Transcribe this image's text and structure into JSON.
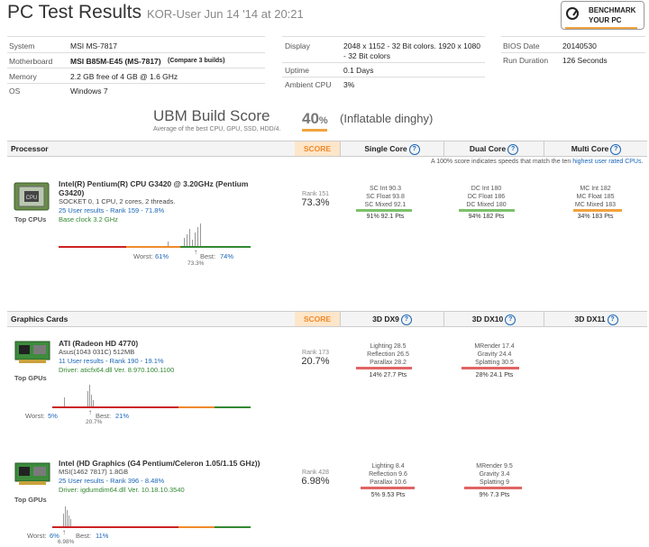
{
  "header": {
    "title": "PC Test Results",
    "subtitle": "KOR-User Jun 14 '14 at 20:21",
    "bench_button_line1": "BENCHMARK",
    "bench_button_line2": "YOUR PC"
  },
  "system": {
    "system_label": "System",
    "system_value": "MSI MS-7817",
    "motherboard_label": "Motherboard",
    "motherboard_value": "MSI B85M-E45 (MS-7817)",
    "compare_link": "(Compare 3 builds)",
    "memory_label": "Memory",
    "memory_value": "2.2 GB free of 4 GB @ 1.6 GHz",
    "os_label": "OS",
    "os_value": "Windows 7",
    "display_label": "Display",
    "display_value_1": "2048 x 1152 - 32 Bit colors. 1920 x 1080",
    "display_value_2": "- 32 Bit colors",
    "uptime_label": "Uptime",
    "uptime_value": "0.1 Days",
    "ambient_label": "Ambient CPU",
    "ambient_value": "3%",
    "bios_label": "BIOS Date",
    "bios_value": "20140530",
    "run_label": "Run Duration",
    "run_value": "126 Seconds"
  },
  "ubm": {
    "title": "UBM Build Score",
    "subtitle": "Average of the best CPU, GPU, SSD, HDD/4.",
    "percent": "40",
    "percent_sign": "%",
    "name": "(Inflatable dinghy)"
  },
  "processor": {
    "section": "Processor",
    "score_label": "SCORE",
    "col1": "Single Core",
    "col2": "Dual Core",
    "col3": "Multi Core",
    "note_prefix": "A 100% score indicates speeds that match the ten ",
    "note_link": "highest user rated CPUs",
    "note_suffix": ".",
    "name_1": "Intel(R) Pentium(R) CPU G3420 @ 3.20GHz (Pentium",
    "name_2": "G3420)",
    "details": "SOCKET 0, 1 CPU, 2 cores, 2 threads.",
    "user_results": "25 User results - Rank 159 - 71.8%",
    "base_clock": "Base clock 3.2 GHz",
    "top_label": "Top CPUs",
    "rank": "Rank 151",
    "score": "73.3%",
    "sc": [
      "SC Int 90.3",
      "SC Float 93.8",
      "SC Mixed 92.1"
    ],
    "sc_pts": "91% 92.1 Pts",
    "dc": [
      "DC Int 180",
      "DC Float 186",
      "DC Mixed 180"
    ],
    "dc_pts": "94% 182 Pts",
    "mc": [
      "MC Int 182",
      "MC Float 185",
      "MC Mixed 183"
    ],
    "mc_pts": "34% 183 Pts",
    "worst_label": "Worst:",
    "worst_value": "61%",
    "best_label": "Best:",
    "best_value": "74%",
    "marker_value": "73.3%"
  },
  "graphics": {
    "section": "Graphics Cards",
    "score_label": "SCORE",
    "col1": "3D DX9",
    "col2": "3D DX10",
    "col3": "3D DX11",
    "gpus": [
      {
        "name": "ATI (Radeon HD 4770)",
        "details": "Asus(1043 031C) 512MB",
        "user_results": "11 User results - Rank 190 - 19.1%",
        "driver": "Driver: aticfx64.dll Ver. 8.970.100.1100",
        "top_label": "Top GPUs",
        "rank": "Rank 173",
        "score": "20.7%",
        "dx9": [
          "Lighting 28.5",
          "Reflection 26.5",
          "Parallax 28.2"
        ],
        "dx9_pts": "14% 27.7 Pts",
        "dx10": [
          "MRender 17.4",
          "Gravity 24.4",
          "Splatting 30.5"
        ],
        "dx10_pts": "28% 24.1 Pts",
        "worst_label": "Worst:",
        "worst_value": "5%",
        "best_label": "Best:",
        "best_value": "21%",
        "marker_value": "20.7%"
      },
      {
        "name": "Intel (HD Graphics (G4 Pentium/Celeron 1.05/1.15 GHz))",
        "details": "MSI(1462 7817) 1.8GB",
        "user_results": "25 User results - Rank 396 - 8.48%",
        "driver": "Driver: igdumdim64.dll Ver. 10.18.10.3540",
        "top_label": "Top GPUs",
        "rank": "Rank 428",
        "score": "6.98%",
        "dx9": [
          "Lighting 8.4",
          "Reflection 9.6",
          "Parallax 10.6"
        ],
        "dx9_pts": "5% 9.53 Pts",
        "dx10": [
          "MRender 9.5",
          "Gravity 3.4",
          "Splatting 9"
        ],
        "dx10_pts": "9% 7.3 Pts",
        "worst_label": "Worst:",
        "worst_value": "6%",
        "best_label": "Best:",
        "best_value": "11%",
        "marker_value": "6.98%"
      }
    ]
  },
  "colors": {
    "accent": "#f1a340",
    "link": "#1a66b8",
    "good": "#7cc26b",
    "bad": "#e06464",
    "worst": "#cc2222",
    "mid": "#f08a2c",
    "best": "#338833"
  }
}
